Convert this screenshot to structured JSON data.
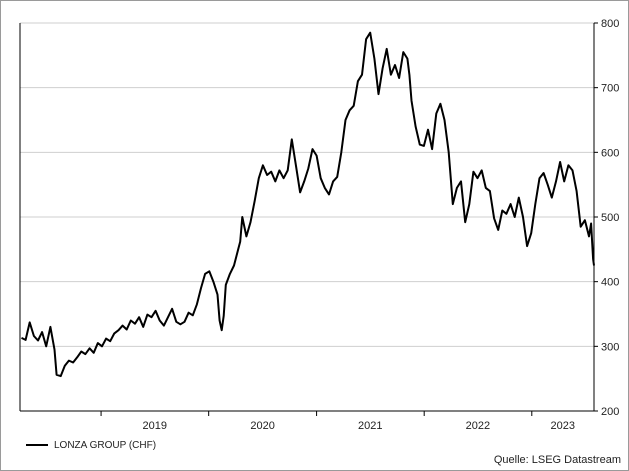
{
  "chart_data": {
    "type": "line",
    "title": "",
    "xlabel": "",
    "ylabel": "",
    "ylim": [
      200,
      800
    ],
    "y_ticks": [
      "200",
      "300",
      "400",
      "500",
      "600",
      "700",
      "800"
    ],
    "y_axis_side": "right",
    "x_range": [
      "2018-04-01",
      "2023-07-31"
    ],
    "x_ticks": [
      "2019",
      "2020",
      "2021",
      "2022",
      "2023"
    ],
    "grid": {
      "horizontal": true,
      "vertical": false
    },
    "legend": "bottom-left",
    "series": [
      {
        "name": "LONZA GROUP (CHF)",
        "color": "#000000",
        "points": [
          [
            "2018-04-06",
            313
          ],
          [
            "2018-04-20",
            310
          ],
          [
            "2018-05-04",
            337
          ],
          [
            "2018-05-18",
            316
          ],
          [
            "2018-06-01",
            309
          ],
          [
            "2018-06-15",
            322
          ],
          [
            "2018-06-29",
            300
          ],
          [
            "2018-07-13",
            330
          ],
          [
            "2018-07-27",
            295
          ],
          [
            "2018-08-03",
            256
          ],
          [
            "2018-08-17",
            254
          ],
          [
            "2018-08-31",
            270
          ],
          [
            "2018-09-14",
            278
          ],
          [
            "2018-09-28",
            275
          ],
          [
            "2018-10-12",
            283
          ],
          [
            "2018-10-26",
            292
          ],
          [
            "2018-11-09",
            288
          ],
          [
            "2018-11-23",
            297
          ],
          [
            "2018-12-07",
            290
          ],
          [
            "2018-12-21",
            305
          ],
          [
            "2019-01-04",
            300
          ],
          [
            "2019-01-18",
            312
          ],
          [
            "2019-02-01",
            308
          ],
          [
            "2019-02-15",
            320
          ],
          [
            "2019-03-01",
            325
          ],
          [
            "2019-03-15",
            332
          ],
          [
            "2019-03-29",
            326
          ],
          [
            "2019-04-12",
            340
          ],
          [
            "2019-04-26",
            335
          ],
          [
            "2019-05-10",
            345
          ],
          [
            "2019-05-24",
            330
          ],
          [
            "2019-06-07",
            349
          ],
          [
            "2019-06-21",
            345
          ],
          [
            "2019-07-05",
            355
          ],
          [
            "2019-07-19",
            340
          ],
          [
            "2019-08-02",
            332
          ],
          [
            "2019-08-16",
            345
          ],
          [
            "2019-08-30",
            358
          ],
          [
            "2019-09-13",
            338
          ],
          [
            "2019-09-27",
            334
          ],
          [
            "2019-10-11",
            338
          ],
          [
            "2019-10-25",
            352
          ],
          [
            "2019-11-08",
            348
          ],
          [
            "2019-11-22",
            365
          ],
          [
            "2019-12-06",
            390
          ],
          [
            "2019-12-20",
            412
          ],
          [
            "2020-01-03",
            416
          ],
          [
            "2020-01-17",
            400
          ],
          [
            "2020-01-31",
            380
          ],
          [
            "2020-02-07",
            340
          ],
          [
            "2020-02-14",
            325
          ],
          [
            "2020-02-21",
            347
          ],
          [
            "2020-02-28",
            395
          ],
          [
            "2020-03-13",
            412
          ],
          [
            "2020-03-27",
            425
          ],
          [
            "2020-04-10",
            450
          ],
          [
            "2020-04-17",
            462
          ],
          [
            "2020-04-24",
            500
          ],
          [
            "2020-05-08",
            470
          ],
          [
            "2020-05-22",
            492
          ],
          [
            "2020-06-05",
            525
          ],
          [
            "2020-06-19",
            560
          ],
          [
            "2020-07-03",
            580
          ],
          [
            "2020-07-17",
            565
          ],
          [
            "2020-07-31",
            570
          ],
          [
            "2020-08-14",
            555
          ],
          [
            "2020-08-28",
            572
          ],
          [
            "2020-09-11",
            560
          ],
          [
            "2020-09-25",
            572
          ],
          [
            "2020-10-09",
            620
          ],
          [
            "2020-10-23",
            580
          ],
          [
            "2020-11-06",
            538
          ],
          [
            "2020-11-20",
            555
          ],
          [
            "2020-12-04",
            575
          ],
          [
            "2020-12-18",
            605
          ],
          [
            "2021-01-01",
            595
          ],
          [
            "2021-01-15",
            560
          ],
          [
            "2021-01-29",
            545
          ],
          [
            "2021-02-12",
            535
          ],
          [
            "2021-02-26",
            555
          ],
          [
            "2021-03-12",
            562
          ],
          [
            "2021-03-26",
            600
          ],
          [
            "2021-04-09",
            650
          ],
          [
            "2021-04-23",
            665
          ],
          [
            "2021-05-07",
            672
          ],
          [
            "2021-05-21",
            710
          ],
          [
            "2021-06-04",
            720
          ],
          [
            "2021-06-18",
            775
          ],
          [
            "2021-07-02",
            785
          ],
          [
            "2021-07-16",
            745
          ],
          [
            "2021-07-30",
            690
          ],
          [
            "2021-08-13",
            730
          ],
          [
            "2021-08-27",
            760
          ],
          [
            "2021-09-10",
            720
          ],
          [
            "2021-09-24",
            735
          ],
          [
            "2021-10-08",
            715
          ],
          [
            "2021-10-22",
            755
          ],
          [
            "2021-11-05",
            745
          ],
          [
            "2021-11-12",
            720
          ],
          [
            "2021-11-19",
            680
          ],
          [
            "2021-12-03",
            640
          ],
          [
            "2021-12-17",
            612
          ],
          [
            "2021-12-31",
            610
          ],
          [
            "2022-01-14",
            635
          ],
          [
            "2022-01-28",
            605
          ],
          [
            "2022-02-11",
            660
          ],
          [
            "2022-02-25",
            675
          ],
          [
            "2022-03-11",
            650
          ],
          [
            "2022-03-25",
            600
          ],
          [
            "2022-04-08",
            520
          ],
          [
            "2022-04-22",
            545
          ],
          [
            "2022-05-06",
            555
          ],
          [
            "2022-05-20",
            492
          ],
          [
            "2022-06-03",
            520
          ],
          [
            "2022-06-17",
            570
          ],
          [
            "2022-07-01",
            560
          ],
          [
            "2022-07-15",
            572
          ],
          [
            "2022-07-29",
            545
          ],
          [
            "2022-08-12",
            540
          ],
          [
            "2022-08-26",
            498
          ],
          [
            "2022-09-09",
            480
          ],
          [
            "2022-09-23",
            510
          ],
          [
            "2022-10-07",
            505
          ],
          [
            "2022-10-21",
            520
          ],
          [
            "2022-11-04",
            500
          ],
          [
            "2022-11-18",
            530
          ],
          [
            "2022-12-02",
            500
          ],
          [
            "2022-12-16",
            455
          ],
          [
            "2022-12-30",
            475
          ],
          [
            "2023-01-13",
            520
          ],
          [
            "2023-01-27",
            560
          ],
          [
            "2023-02-10",
            568
          ],
          [
            "2023-02-24",
            550
          ],
          [
            "2023-03-10",
            530
          ],
          [
            "2023-03-24",
            555
          ],
          [
            "2023-04-07",
            585
          ],
          [
            "2023-04-21",
            555
          ],
          [
            "2023-05-05",
            580
          ],
          [
            "2023-05-19",
            572
          ],
          [
            "2023-06-02",
            540
          ],
          [
            "2023-06-16",
            485
          ],
          [
            "2023-06-30",
            495
          ],
          [
            "2023-07-14",
            470
          ],
          [
            "2023-07-21",
            490
          ],
          [
            "2023-07-28",
            435
          ],
          [
            "2023-07-31",
            425
          ]
        ]
      }
    ]
  },
  "source": "Quelle: LSEG Datastream"
}
